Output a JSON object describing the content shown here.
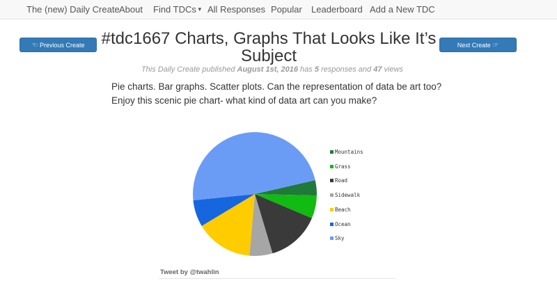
{
  "nav": {
    "items": [
      "The (new) Daily Create",
      "About",
      "Find TDCs",
      "All Responses",
      "Popular",
      "Leaderboard",
      "Add a New TDC"
    ]
  },
  "buttons": {
    "previous": "Previous Create",
    "next": "Next Create"
  },
  "post": {
    "title": "#tdc1667 Charts, Graphs That Looks Like It’s Subject",
    "meta_prefix": "This Daily Create published",
    "date": "August 1st, 2016",
    "meta_has": "has",
    "responses_count": "5",
    "meta_responses_and": "responses and",
    "views_count": "47",
    "meta_views": "views",
    "description_line1": "Pie charts. Bar graphs. Scatter plots. Can the representation of data be art too?",
    "description_line2": "Enjoy this scenic pie chart- what kind of data art can you make?"
  },
  "tweet": {
    "attribution": "Tweet by @twahlin"
  },
  "chart_data": {
    "type": "pie",
    "title": "",
    "legend_position": "right",
    "slices": [
      {
        "label": "Mountains",
        "value": 4,
        "color": "#1f7a3a"
      },
      {
        "label": "Grass",
        "value": 6,
        "color": "#11bb11"
      },
      {
        "label": "Road",
        "value": 14,
        "color": "#3a3a3a"
      },
      {
        "label": "Sidewalk",
        "value": 6,
        "color": "#a6a6a6"
      },
      {
        "label": "Beach",
        "value": 15,
        "color": "#ffcc00"
      },
      {
        "label": "Ocean",
        "value": 7,
        "color": "#1666e0"
      },
      {
        "label": "Sky",
        "value": 48,
        "color": "#6b9cf5"
      }
    ]
  }
}
